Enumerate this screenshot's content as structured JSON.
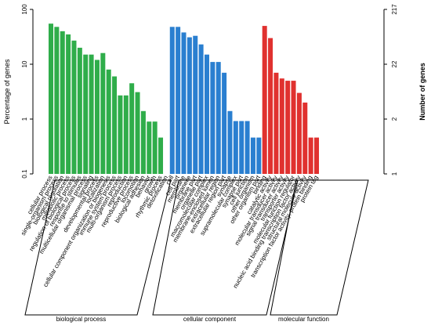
{
  "chart_data": {
    "type": "bar",
    "title": "",
    "ylabel": "Percentage of genes",
    "y2label": "Number of genes",
    "yscale": "log",
    "ylim": [
      0.1,
      100
    ],
    "y_ticks": [
      "100",
      "10",
      "1",
      "0.1"
    ],
    "y2_ticks": [
      "217",
      "22",
      "2",
      "1"
    ],
    "grid": false,
    "colors": {
      "biological process": "#2fad4a",
      "cellular component": "#2a7fd0",
      "molecular function": "#e0312f"
    },
    "groups": [
      {
        "name": "biological process",
        "categories": [
          "cellular process",
          "single-organism process",
          "biological regulation",
          "metabolic process",
          "regulation of biological process",
          "response to stimulus",
          "multicellular organismal process",
          "signaling",
          "developmental process",
          "localization",
          "cellular component organization or biogenesis",
          "immune system process",
          "multi-organism process",
          "reproduction",
          "reproductive process",
          "locomotion",
          "biological adhesion",
          "behavior",
          "growth",
          "rhythmic process",
          "detoxification"
        ],
        "values": [
          55,
          48,
          40,
          35,
          27,
          20,
          15,
          15,
          12,
          16,
          8,
          6,
          2.7,
          2.7,
          4.5,
          3.1,
          1.4,
          0.9,
          0.9,
          0.46,
          0
        ]
      },
      {
        "name": "cellular component",
        "categories": [
          "cell",
          "cell part",
          "membrane",
          "organelle",
          "membrane part",
          "organelle part",
          "macromolecular complex",
          "membrane-enclosed lumen",
          "extracellular region",
          "extracellular region part",
          "synapse",
          "supramolecular complex",
          "synapse part",
          "cell junction",
          "other organism",
          "other organism part"
        ],
        "values": [
          48,
          48,
          38,
          31,
          33,
          23,
          15,
          11,
          11,
          7,
          1.4,
          0.92,
          0.92,
          0.92,
          0.46,
          0.46
        ]
      },
      {
        "name": "molecular function",
        "categories": [
          "binding",
          "catalytic activity",
          "molecular transducer activity",
          "signal transducer activity",
          "transporter activity",
          "molecular function regulator",
          "nucleic acid binding transcription factor activity",
          "structural molecule activity",
          "transcription factor activity, protein binding",
          "protein tag"
        ],
        "values": [
          50,
          30,
          7,
          5.5,
          5,
          5,
          3,
          2,
          0.46,
          0.46
        ]
      }
    ]
  }
}
